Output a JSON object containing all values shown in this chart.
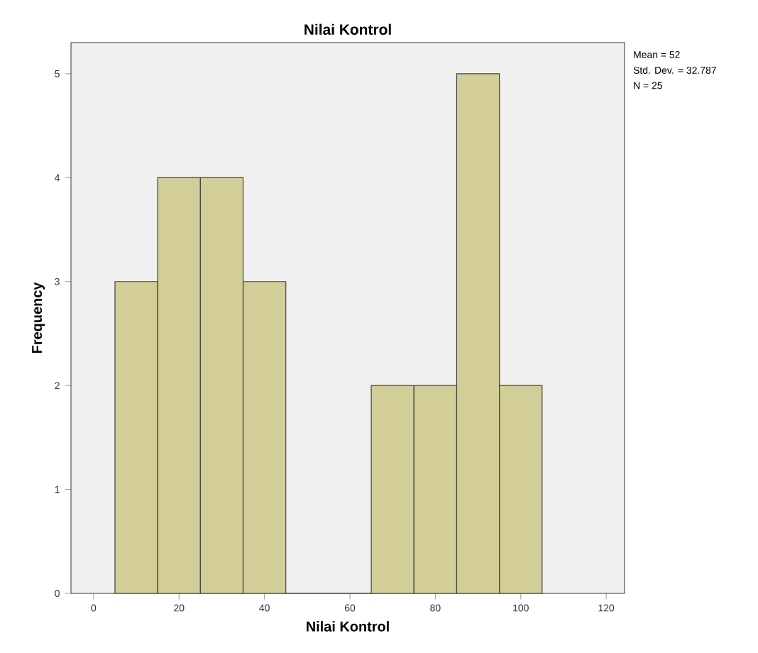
{
  "chart_data": {
    "type": "histogram",
    "title": "Nilai Kontrol",
    "xlabel": "Nilai Kontrol",
    "ylabel": "Frequency",
    "bins": [
      5,
      15,
      25,
      35,
      45,
      55,
      65,
      75,
      85,
      95,
      105
    ],
    "values": [
      3,
      4,
      4,
      3,
      0,
      0,
      2,
      2,
      5,
      2
    ],
    "color": "#d3ce97",
    "xlim": [
      -5.3,
      124.3
    ],
    "ylim": [
      0,
      5.3
    ],
    "xticks": [
      0,
      20,
      40,
      60,
      80,
      100,
      120
    ],
    "yticks": [
      0,
      1,
      2,
      3,
      4,
      5
    ],
    "grid": false,
    "annotations": [
      "Mean = 52",
      "Std. Dev. = 32.787",
      "N = 25"
    ]
  }
}
